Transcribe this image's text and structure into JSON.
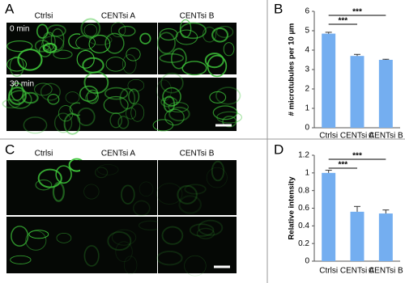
{
  "panels": {
    "letters": [
      "A",
      "B",
      "C",
      "D"
    ],
    "a_columns": [
      "Ctrlsi",
      "CENTsi A",
      "CENTsi B"
    ],
    "a_rows": [
      "0 min",
      "30 min"
    ],
    "c_columns": [
      "Ctrlsi",
      "CENTsi A",
      "CENTsi B"
    ]
  },
  "chart_data": [
    {
      "type": "bar",
      "y_label": "# microtubules per 10 µm",
      "categories": [
        "Ctrlsi",
        "CENTsi A",
        "CENTsi B"
      ],
      "values": [
        4.85,
        3.7,
        3.5
      ],
      "errors": [
        0.07,
        0.08,
        0.03
      ],
      "color": "#74aef0",
      "ylim": [
        0,
        6
      ],
      "yticks": [
        0,
        1,
        2,
        3,
        4,
        5,
        6
      ],
      "annotations": [
        "***",
        "***"
      ]
    },
    {
      "type": "bar",
      "y_label": "Relative intensity",
      "categories": [
        "Ctrlsi",
        "CENTsi A",
        "CENTsi B"
      ],
      "values": [
        1.0,
        0.56,
        0.54
      ],
      "errors": [
        0.03,
        0.06,
        0.04
      ],
      "color": "#74aef0",
      "ylim": [
        0,
        1.2
      ],
      "yticks": [
        0,
        0.2,
        0.4,
        0.6,
        0.8,
        1,
        1.2
      ],
      "annotations": [
        "***",
        "***"
      ]
    }
  ]
}
